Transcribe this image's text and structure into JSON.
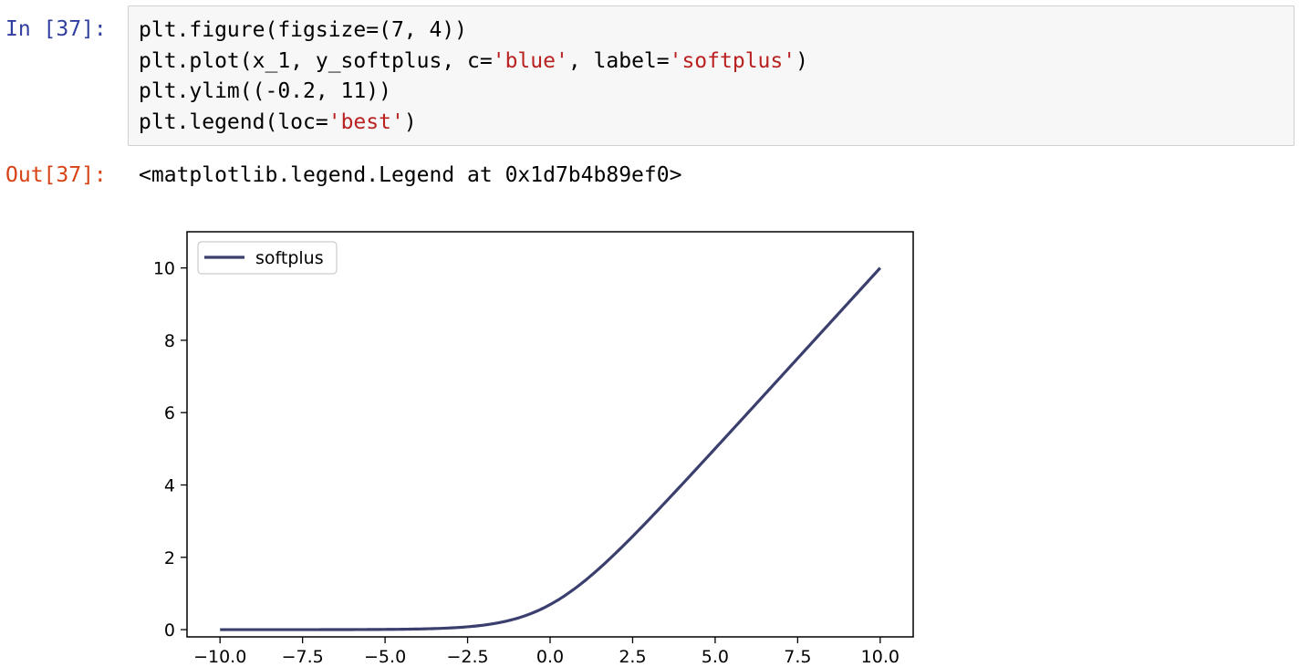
{
  "cell": {
    "in_prompt": "In [37]:",
    "out_prompt": "Out[37]:",
    "code_lines": [
      [
        {
          "t": "plt.figure(figsize=(7, 4))",
          "s": false
        }
      ],
      [
        {
          "t": "plt.plot(x_1, y_softplus, c=",
          "s": false
        },
        {
          "t": "'blue'",
          "s": true
        },
        {
          "t": ", label=",
          "s": false
        },
        {
          "t": "'softplus'",
          "s": true
        },
        {
          "t": ")",
          "s": false
        }
      ],
      [
        {
          "t": "plt.ylim((-0.2, 11))",
          "s": false
        }
      ],
      [
        {
          "t": "plt.legend(loc=",
          "s": false
        },
        {
          "t": "'best'",
          "s": true
        },
        {
          "t": ")",
          "s": false
        }
      ]
    ],
    "output_text": "<matplotlib.legend.Legend at 0x1d7b4b89ef0>"
  },
  "colors": {
    "in_prompt": "#303f9f",
    "out_prompt": "#d84315",
    "string_literal": "#ba2121",
    "line": "#3b3f6e"
  },
  "chart_data": {
    "type": "line",
    "title": "",
    "xlabel": "",
    "ylabel": "",
    "xlim": [
      -11,
      11
    ],
    "ylim": [
      -0.2,
      11
    ],
    "xticks": [
      -10.0,
      -7.5,
      -5.0,
      -2.5,
      0.0,
      2.5,
      5.0,
      7.5,
      10.0
    ],
    "xtick_labels": [
      "−10.0",
      "−7.5",
      "−5.0",
      "−2.5",
      "0.0",
      "2.5",
      "5.0",
      "7.5",
      "10.0"
    ],
    "yticks": [
      0,
      2,
      4,
      6,
      8,
      10
    ],
    "ytick_labels": [
      "0",
      "2",
      "4",
      "6",
      "8",
      "10"
    ],
    "legend_position": "top-left",
    "grid": false,
    "series": [
      {
        "name": "softplus",
        "color": "#3b3f6e",
        "function": "log(1+exp(x))",
        "x_range": [
          -10,
          10
        ],
        "x": [
          -10,
          -8,
          -6,
          -4,
          -3,
          -2,
          -1,
          0,
          1,
          2,
          3,
          4,
          5,
          6,
          8,
          10
        ],
        "y": [
          5e-05,
          0.0003,
          0.0025,
          0.018,
          0.049,
          0.127,
          0.313,
          0.693,
          1.313,
          2.127,
          3.049,
          4.018,
          5.007,
          6.002,
          8.0003,
          10.00005
        ]
      }
    ]
  }
}
